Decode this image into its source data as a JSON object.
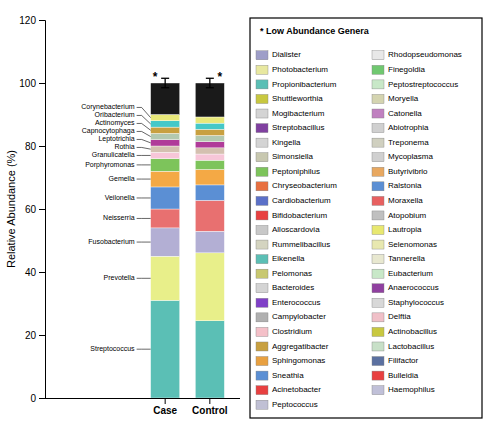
{
  "chart_data": {
    "type": "bar",
    "stacked": true,
    "categories": [
      "Case",
      "Control"
    ],
    "ylabel": "Relative Abundance (%)",
    "ylim": [
      0,
      120
    ],
    "yticks": [
      0,
      20,
      40,
      60,
      80,
      100,
      120
    ],
    "grid": false,
    "series": [
      {
        "name": "Streptococcus",
        "color": "#5bbfb5",
        "values": [
          31,
          24.50980392156863
        ]
      },
      {
        "name": "Prevotella",
        "color": "#e8ef8a",
        "values": [
          14,
          21.56862745098039
        ]
      },
      {
        "name": "Fusobacterium",
        "color": "#b3afd4",
        "values": [
          9,
          6.862745098039216
        ]
      },
      {
        "name": "Neisserria",
        "color": "#e87070",
        "values": [
          6,
          9.803921568627452
        ]
      },
      {
        "name": "Veilonella",
        "color": "#5b8fd4",
        "values": [
          7,
          4.901960784313725
        ]
      },
      {
        "name": "Gemella",
        "color": "#f4a945",
        "values": [
          5,
          4.901960784313725
        ]
      },
      {
        "name": "Porphyromonas",
        "color": "#7dc45b",
        "values": [
          4,
          2.941176470588235
        ]
      },
      {
        "name": "Granulicatella",
        "color": "#f7c6d8",
        "values": [
          2,
          1.96078431372549
        ]
      },
      {
        "name": "Rothia",
        "color": "#d4c0b0",
        "values": [
          2,
          1.96078431372549
        ]
      },
      {
        "name": "Leptotrichia",
        "color": "#b03b99",
        "values": [
          2,
          1.96078431372549
        ]
      },
      {
        "name": "Capnocytophaga",
        "color": "#b3c9b0",
        "values": [
          2,
          1.96078431372549
        ]
      },
      {
        "name": "Actinomyces",
        "color": "#c8a040",
        "values": [
          2,
          1.96078431372549
        ]
      },
      {
        "name": "Oribacterium",
        "color": "#45c8c8",
        "values": [
          2,
          1.96078431372549
        ]
      },
      {
        "name": "Corynebacterium",
        "color": "#e8e87a",
        "values": [
          2,
          1.96078431372549
        ]
      },
      {
        "color": "#1a1a1a",
        "values": [
          10,
          10.784313725490197
        ]
      }
    ],
    "error_bars": [
      {
        "value": 100,
        "error": 1.5
      },
      {
        "value": 100,
        "error": 1.5
      }
    ],
    "annotations": [
      "*",
      "*"
    ],
    "low_abundance": {
      "title": "* Low Abundance Genera",
      "entries": [
        {
          "name": "Dialister",
          "color": "#9e9ec8"
        },
        {
          "name": "Photobacterium",
          "color": "#e8e8a0"
        },
        {
          "name": "Propionibacterium",
          "color": "#5bbfb5"
        },
        {
          "name": "Shuttleworthia",
          "color": "#c8c840"
        },
        {
          "name": "Mogibacterium",
          "color": "#d4d4d4"
        },
        {
          "name": "Streptobacillus",
          "color": "#8040a0"
        },
        {
          "name": "Kingella",
          "color": "#d4d4d4"
        },
        {
          "name": "Simonsiella",
          "color": "#c8c8b0"
        },
        {
          "name": "Peptoniphilus",
          "color": "#7dc45b"
        },
        {
          "name": "Chryseobacterium",
          "color": "#e87040"
        },
        {
          "name": "Cardiobacterium",
          "color": "#5b70c8"
        },
        {
          "name": "Bifidobacterium",
          "color": "#e84040"
        },
        {
          "name": "Alloscardovia",
          "color": "#c8c8c8"
        },
        {
          "name": "Rummelibacillus",
          "color": "#d4d4c0"
        },
        {
          "name": "Eikenella",
          "color": "#5bbfb5"
        },
        {
          "name": "Pelomonas",
          "color": "#c8c870"
        },
        {
          "name": "Bacteroides",
          "color": "#d4d4d4"
        },
        {
          "name": "Enterococcus",
          "color": "#8040c8"
        },
        {
          "name": "Campylobacter",
          "color": "#b0b0b0"
        },
        {
          "name": "Clostridium",
          "color": "#f4c0c8"
        },
        {
          "name": "Aggregatibacter",
          "color": "#c8a040"
        },
        {
          "name": "Sphingomonas",
          "color": "#e8a040"
        },
        {
          "name": "Sneathia",
          "color": "#5b8fd4"
        },
        {
          "name": "Acinetobacter",
          "color": "#e84040"
        },
        {
          "name": "Peptococcus",
          "color": "#c0c0d4"
        },
        {
          "name": "Rhodopseudomonas",
          "color": "#e8e8e8"
        },
        {
          "name": "Finegoldia",
          "color": "#70c870"
        },
        {
          "name": "Peptostreptococcus",
          "color": "#c8e8c8"
        },
        {
          "name": "Moryella",
          "color": "#d4d4b0"
        },
        {
          "name": "Catonella",
          "color": "#c080c0"
        },
        {
          "name": "Abiotrophia",
          "color": "#d0d0d0"
        },
        {
          "name": "Treponema",
          "color": "#d0d0c0"
        },
        {
          "name": "Mycoplasma",
          "color": "#d0d0d0"
        },
        {
          "name": "Butyrivibrio",
          "color": "#e8a860"
        },
        {
          "name": "Ralstonia",
          "color": "#5b8fd4"
        },
        {
          "name": "Moraxella",
          "color": "#e86060"
        },
        {
          "name": "Atopobium",
          "color": "#c0c0c0"
        },
        {
          "name": "Lautropia",
          "color": "#e8e870"
        },
        {
          "name": "Selenomonas",
          "color": "#e8e8b0"
        },
        {
          "name": "Tannerella",
          "color": "#e8e8d0"
        },
        {
          "name": "Eubacterium",
          "color": "#c8e8c8"
        },
        {
          "name": "Anaerococcus",
          "color": "#9040a0"
        },
        {
          "name": "Staphylococcus",
          "color": "#d8d8d8"
        },
        {
          "name": "Delftia",
          "color": "#f0c0c8"
        },
        {
          "name": "Actinobacillus",
          "color": "#c8c840"
        },
        {
          "name": "Lactobacillus",
          "color": "#c8e0c8"
        },
        {
          "name": "Filifactor",
          "color": "#5b70a0"
        },
        {
          "name": "Bulleidia",
          "color": "#e84040"
        },
        {
          "name": "Haemophilus",
          "color": "#c0c0d8"
        }
      ]
    }
  }
}
